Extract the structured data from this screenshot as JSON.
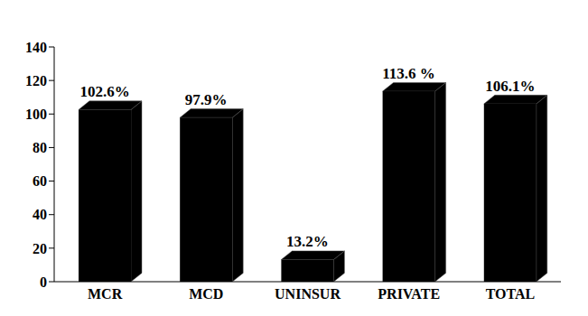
{
  "chart_data": {
    "type": "bar",
    "categories": [
      "MCR",
      "MCD",
      "UNINSUR",
      "PRIVATE",
      "TOTAL"
    ],
    "values": [
      102.6,
      97.9,
      13.2,
      113.6,
      106.1
    ],
    "value_labels": [
      "102.6%",
      "97.9%",
      "13.2%",
      "113.6 %",
      "106.1%"
    ],
    "data_labels": true,
    "color": "#000000",
    "ylim": [
      0,
      140
    ],
    "yticks": [
      0,
      20,
      40,
      60,
      80,
      100,
      120,
      140
    ],
    "grid": false
  }
}
